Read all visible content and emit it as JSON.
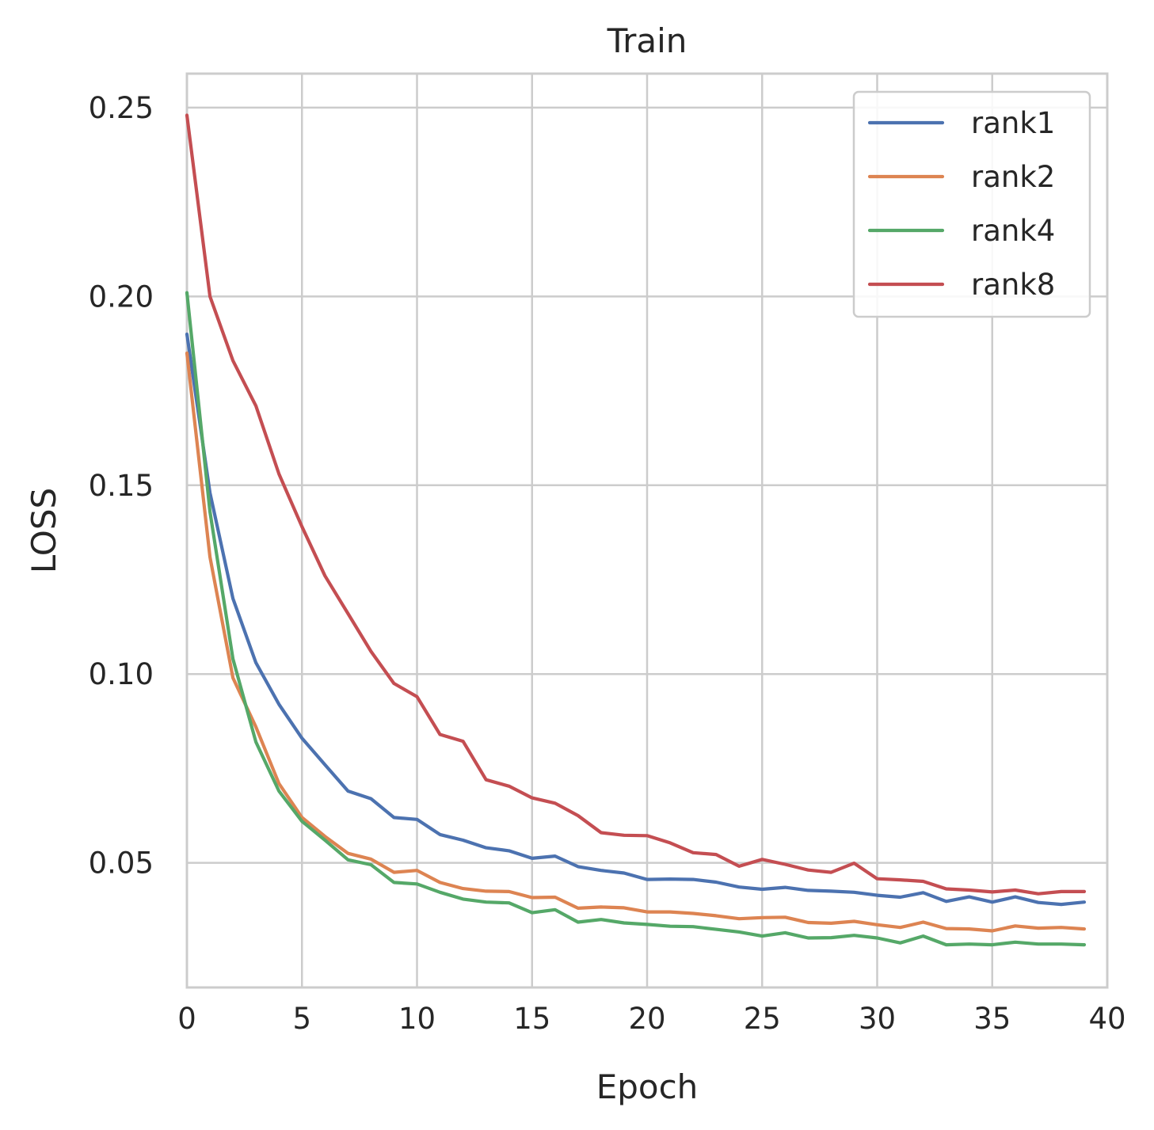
{
  "chart_data": {
    "type": "line",
    "title": "Train",
    "xlabel": "Epoch",
    "ylabel": "LOSS",
    "xlim": [
      0,
      40
    ],
    "ylim": [
      0.017,
      0.259
    ],
    "xticks": [
      0,
      5,
      10,
      15,
      20,
      25,
      30,
      35,
      40
    ],
    "xtick_labels": [
      "0",
      "5",
      "10",
      "15",
      "20",
      "25",
      "30",
      "35",
      "40"
    ],
    "yticks": [
      0.05,
      0.1,
      0.15,
      0.2,
      0.25
    ],
    "ytick_labels": [
      "0.05",
      "0.10",
      "0.15",
      "0.20",
      "0.25"
    ],
    "grid": true,
    "legend_position": "top-right",
    "x": [
      0,
      1,
      2,
      3,
      4,
      5,
      6,
      7,
      8,
      9,
      10,
      11,
      12,
      13,
      14,
      15,
      16,
      17,
      18,
      19,
      20,
      21,
      22,
      23,
      24,
      25,
      26,
      27,
      28,
      29,
      30,
      31,
      32,
      33,
      34,
      35,
      36,
      37,
      38,
      39
    ],
    "series": [
      {
        "name": "rank1",
        "color": "#4c72b0",
        "values": [
          0.19,
          0.148,
          0.12,
          0.103,
          0.092,
          0.083,
          0.076,
          0.069,
          0.067,
          0.062,
          0.0615,
          0.0575,
          0.056,
          0.054,
          0.0532,
          0.0512,
          0.0518,
          0.049,
          0.048,
          0.0473,
          0.0456,
          0.0457,
          0.0456,
          0.0449,
          0.0436,
          0.043,
          0.0435,
          0.0427,
          0.0425,
          0.0422,
          0.0414,
          0.0409,
          0.0421,
          0.0398,
          0.041,
          0.0396,
          0.041,
          0.0395,
          0.039,
          0.0396
        ]
      },
      {
        "name": "rank2",
        "color": "#dd8452",
        "values": [
          0.185,
          0.131,
          0.099,
          0.086,
          0.071,
          0.062,
          0.057,
          0.0525,
          0.051,
          0.0475,
          0.048,
          0.0448,
          0.0432,
          0.0425,
          0.0424,
          0.0408,
          0.0409,
          0.038,
          0.0383,
          0.0381,
          0.037,
          0.037,
          0.0366,
          0.036,
          0.0352,
          0.0355,
          0.0356,
          0.0342,
          0.034,
          0.0345,
          0.0336,
          0.0329,
          0.0343,
          0.0326,
          0.0325,
          0.032,
          0.0333,
          0.0327,
          0.0329,
          0.0325
        ]
      },
      {
        "name": "rank4",
        "color": "#55a868",
        "values": [
          0.201,
          0.143,
          0.104,
          0.082,
          0.069,
          0.061,
          0.056,
          0.0508,
          0.0495,
          0.0448,
          0.0444,
          0.0422,
          0.0404,
          0.0396,
          0.0394,
          0.0368,
          0.0376,
          0.0343,
          0.035,
          0.0341,
          0.0337,
          0.0332,
          0.0331,
          0.0324,
          0.0317,
          0.0306,
          0.0315,
          0.0301,
          0.0302,
          0.0308,
          0.0301,
          0.0288,
          0.0306,
          0.0283,
          0.0285,
          0.0283,
          0.029,
          0.0285,
          0.0285,
          0.0283
        ]
      },
      {
        "name": "rank8",
        "color": "#c44e52",
        "values": [
          0.248,
          0.2,
          0.183,
          0.171,
          0.153,
          0.139,
          0.126,
          0.116,
          0.106,
          0.0975,
          0.094,
          0.084,
          0.0822,
          0.072,
          0.0703,
          0.0672,
          0.0658,
          0.0625,
          0.058,
          0.0573,
          0.0572,
          0.0553,
          0.0527,
          0.0522,
          0.0491,
          0.0509,
          0.0496,
          0.0481,
          0.0475,
          0.0499,
          0.0458,
          0.0455,
          0.0451,
          0.0431,
          0.0428,
          0.0423,
          0.0428,
          0.0418,
          0.0424,
          0.0424
        ]
      }
    ]
  }
}
